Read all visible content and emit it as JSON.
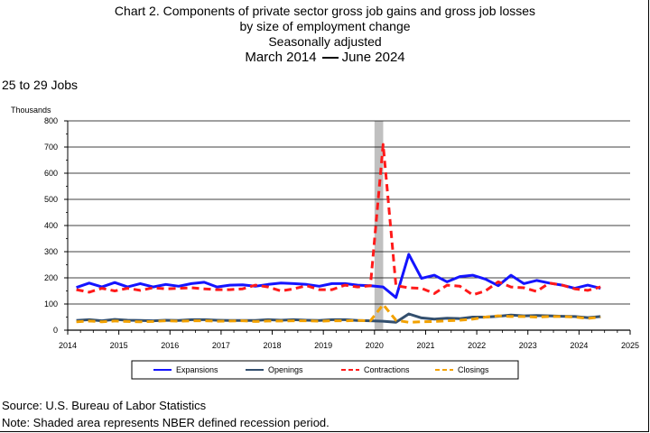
{
  "title": {
    "line1": "Chart 2. Components of private sector gross job gains and gross job losses",
    "line2": "by size of employment change",
    "line3": "Seasonally adjusted",
    "period_start": "March 2014",
    "period_end": "June 2024"
  },
  "subtitle": "25 to 29 Jobs",
  "footer": {
    "source": "Source: U.S. Bureau of Labor Statistics",
    "note": "Note: Shaded area represents NBER defined recession period."
  },
  "colors": {
    "expansions": "#1414ff",
    "openings": "#334f6e",
    "contractions": "#ff1a1a",
    "closings": "#f2a100",
    "recession": "#c0c0c0"
  },
  "chart_data": {
    "type": "line",
    "ylabel": "Thousands",
    "ylim": [
      0,
      800
    ],
    "yticks": [
      0,
      100,
      200,
      300,
      400,
      500,
      600,
      700,
      800
    ],
    "xlim": [
      2014,
      2025
    ],
    "xticks": [
      2014,
      2015,
      2016,
      2017,
      2018,
      2019,
      2020,
      2021,
      2022,
      2023,
      2024,
      2025
    ],
    "grid": true,
    "legend_position": "bottom",
    "recession": {
      "start": 2020.0,
      "end": 2020.17
    },
    "x": [
      2014.17,
      2014.42,
      2014.67,
      2014.92,
      2015.17,
      2015.42,
      2015.67,
      2015.92,
      2016.17,
      2016.42,
      2016.67,
      2016.92,
      2017.17,
      2017.42,
      2017.67,
      2017.92,
      2018.17,
      2018.42,
      2018.67,
      2018.92,
      2019.17,
      2019.42,
      2019.67,
      2019.92,
      2020.17,
      2020.42,
      2020.67,
      2020.92,
      2021.17,
      2021.42,
      2021.67,
      2021.92,
      2022.17,
      2022.42,
      2022.67,
      2022.92,
      2023.17,
      2023.42,
      2023.67,
      2023.92,
      2024.17,
      2024.42
    ],
    "series": [
      {
        "name": "Expansions",
        "style": "solid",
        "values": [
          163,
          180,
          165,
          182,
          165,
          178,
          165,
          175,
          168,
          178,
          183,
          165,
          172,
          173,
          168,
          175,
          180,
          178,
          175,
          168,
          178,
          178,
          172,
          170,
          165,
          125,
          290,
          198,
          210,
          185,
          205,
          210,
          195,
          170,
          210,
          178,
          190,
          180,
          172,
          160,
          172,
          160
        ]
      },
      {
        "name": "Openings",
        "style": "solid",
        "values": [
          37,
          40,
          36,
          41,
          38,
          37,
          36,
          38,
          37,
          40,
          40,
          38,
          37,
          37,
          37,
          40,
          38,
          40,
          38,
          37,
          40,
          40,
          37,
          36,
          34,
          30,
          62,
          47,
          42,
          46,
          44,
          50,
          50,
          53,
          58,
          55,
          56,
          55,
          53,
          52,
          48,
          52
        ]
      },
      {
        "name": "Contractions",
        "style": "dashed",
        "values": [
          155,
          145,
          160,
          150,
          160,
          152,
          162,
          158,
          160,
          162,
          158,
          155,
          155,
          158,
          172,
          165,
          150,
          158,
          170,
          155,
          155,
          172,
          165,
          170,
          710,
          170,
          162,
          160,
          140,
          172,
          168,
          135,
          150,
          185,
          165,
          162,
          148,
          180,
          172,
          158,
          152,
          165
        ]
      },
      {
        "name": "Closings",
        "style": "dashed",
        "values": [
          32,
          35,
          32,
          35,
          33,
          32,
          33,
          36,
          34,
          36,
          36,
          34,
          35,
          36,
          33,
          35,
          35,
          36,
          36,
          34,
          36,
          36,
          37,
          36,
          98,
          38,
          30,
          32,
          33,
          36,
          38,
          42,
          50,
          55,
          52,
          52,
          50,
          52,
          52,
          50,
          45,
          50
        ]
      }
    ]
  }
}
